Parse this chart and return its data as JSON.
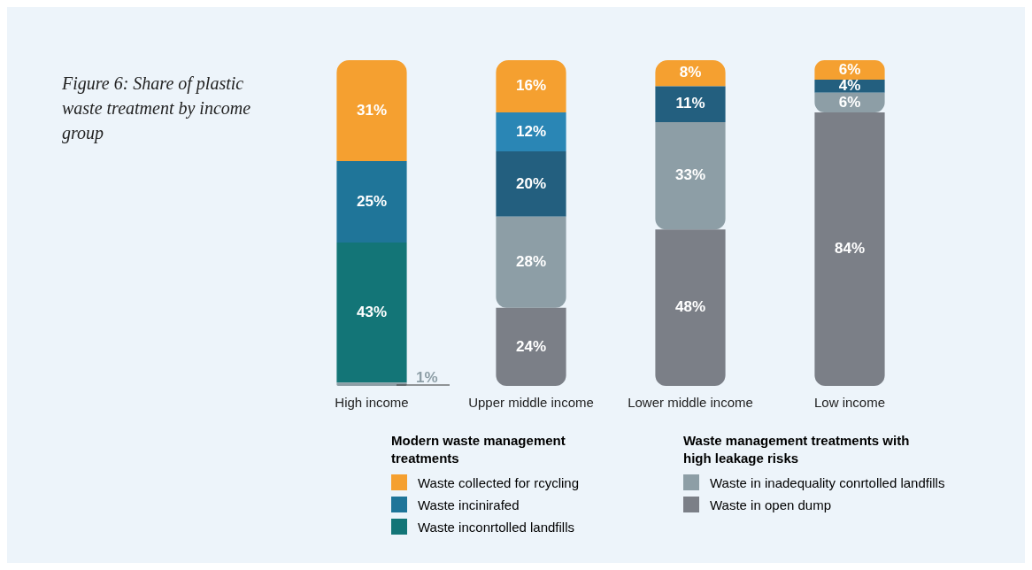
{
  "chart_data": {
    "type": "bar",
    "title": "Figure 6: Share of plastic waste treatment by income group",
    "categories": [
      "High income",
      "Upper middle income",
      "Lower middle income",
      "Low income"
    ],
    "stacked": true,
    "ylim": [
      0,
      100
    ],
    "tick_labels": "x",
    "legend": "bottom",
    "annotations": [
      "Modern waste management treatments",
      "Waste management treatments with high leakage risks"
    ],
    "series": [
      {
        "name": "Waste in open dump",
        "color": "#7b7f87",
        "values": [
          null,
          24,
          48,
          84
        ],
        "value_labels": [
          null,
          "24%",
          "48%",
          "84%"
        ]
      },
      {
        "name": "Waste in inadequality conrtolled landfills",
        "color": "#8d9ea6",
        "values": [
          1,
          28,
          33,
          6
        ],
        "value_labels": [
          "1%",
          "28%",
          "33%",
          "6%"
        ]
      },
      {
        "name": "Waste inconrtolled landfills",
        "color": "#137577",
        "colors": [
          "#137577",
          "#235f7f",
          "#235f7f",
          "#235f7f"
        ],
        "values": [
          43,
          20,
          11,
          4
        ],
        "value_labels": [
          "43%",
          "20%",
          "11%",
          "4%"
        ]
      },
      {
        "name": "Waste incinirafed",
        "color": "#1f7599",
        "colors": [
          "#1f7599",
          "#2a86b5",
          "#2a86b5",
          "#2a86b5"
        ],
        "values": [
          25,
          12,
          null,
          null
        ],
        "value_labels": [
          "25%",
          "12%",
          null,
          null
        ]
      },
      {
        "name": "Waste collected for rcycling",
        "color": "#f5a030",
        "values": [
          31,
          16,
          8,
          6
        ],
        "value_labels": [
          "31%",
          "16%",
          "8%",
          "6%"
        ]
      }
    ]
  }
}
